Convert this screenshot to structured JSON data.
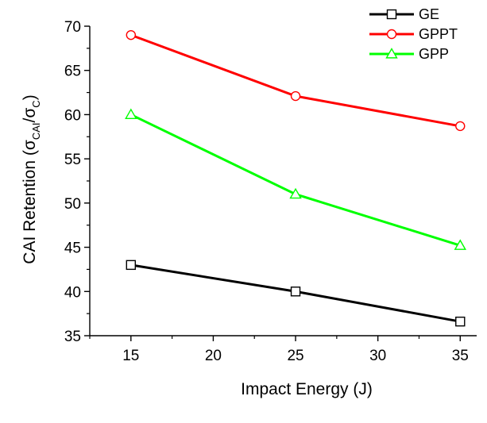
{
  "chart_data": {
    "type": "line",
    "title": "",
    "xlabel": "Impact Energy (J)",
    "ylabel": {
      "main": "CAI Retention (",
      "sigma1": "σ",
      "sub1": "CAI",
      "slash": "/",
      "sigma2": "σ",
      "sub2": "C",
      "close": ")"
    },
    "x": [
      15,
      25,
      35
    ],
    "xlim": [
      12.5,
      36
    ],
    "ylim": [
      35,
      70
    ],
    "xticks": [
      15,
      20,
      25,
      30,
      35
    ],
    "yticks": [
      35,
      40,
      45,
      50,
      55,
      60,
      65,
      70
    ],
    "grid": false,
    "legend_position": "top-right",
    "series": [
      {
        "name": "GE",
        "values": [
          43.0,
          40.0,
          36.6
        ],
        "color": "#000000",
        "marker": "square"
      },
      {
        "name": "GPPT",
        "values": [
          69.0,
          62.1,
          58.7
        ],
        "color": "#ff0000",
        "marker": "circle"
      },
      {
        "name": "GPP",
        "values": [
          60.0,
          51.0,
          45.2
        ],
        "color": "#00ff00",
        "marker": "triangle"
      }
    ]
  }
}
